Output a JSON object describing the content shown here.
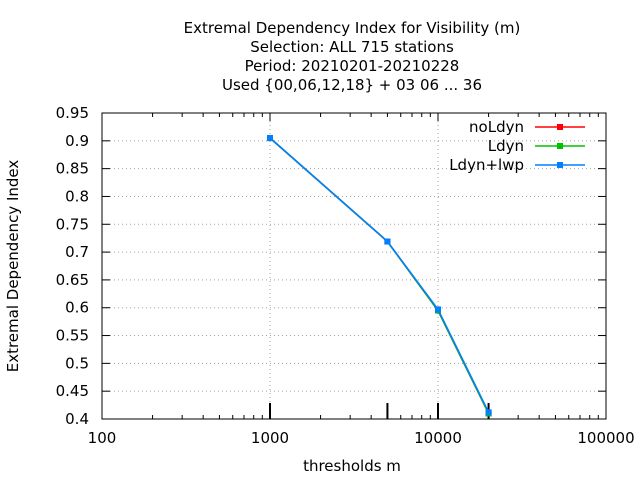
{
  "chart_data": {
    "type": "line",
    "title_lines": [
      "Extremal Dependency Index  for Visibility (m)",
      "Selection: ALL     715 stations",
      "Period: 20210201-20210228",
      "Used {00,06,12,18} + 03 06 ... 36"
    ],
    "xlabel": "thresholds m",
    "ylabel": "Extremal Dependency Index",
    "xscale": "log",
    "xlim": [
      100,
      100000
    ],
    "ylim": [
      0.4,
      0.95
    ],
    "xticks": [
      100,
      1000,
      10000,
      100000
    ],
    "xtick_labels": [
      "100",
      "1000",
      "10000",
      "100000"
    ],
    "yticks": [
      0.4,
      0.45,
      0.5,
      0.55,
      0.6,
      0.65,
      0.7,
      0.75,
      0.8,
      0.85,
      0.9,
      0.95
    ],
    "ytick_labels": [
      "0.4",
      "0.45",
      "0.5",
      "0.55",
      "0.6",
      "0.65",
      "0.7",
      "0.75",
      "0.8",
      "0.85",
      "0.9",
      "0.95"
    ],
    "grid": true,
    "legend_position": "top-right",
    "threshold_markers": [
      1000,
      5000,
      10000,
      20000
    ],
    "x": [
      1000,
      5000,
      10000,
      20000
    ],
    "series": [
      {
        "name": "noLdyn",
        "color": "#ff0000",
        "values": [
          0.905,
          0.719,
          0.595,
          0.41
        ]
      },
      {
        "name": "Ldyn",
        "color": "#00c000",
        "values": [
          0.905,
          0.719,
          0.595,
          0.41
        ]
      },
      {
        "name": "Ldyn+lwp",
        "color": "#0080ff",
        "values": [
          0.905,
          0.719,
          0.597,
          0.412
        ]
      }
    ]
  }
}
